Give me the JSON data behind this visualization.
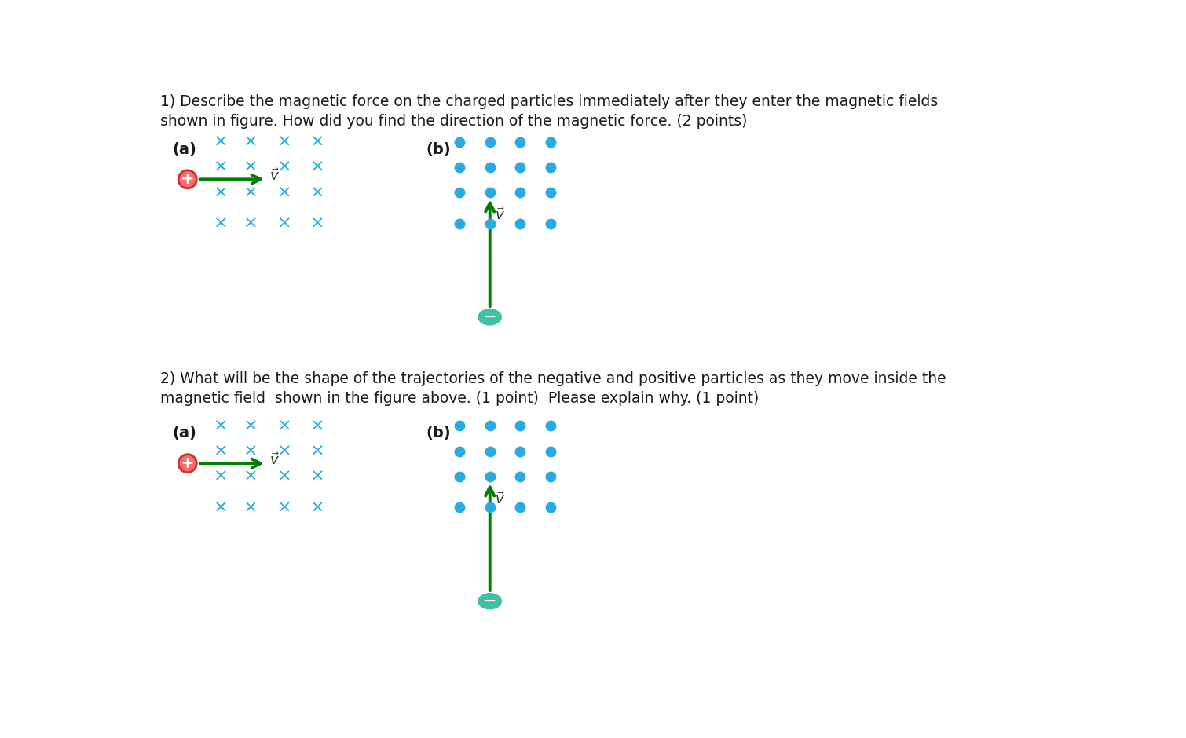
{
  "bg_color": "#ffffff",
  "text_color": "#1a1a1a",
  "cyan_color": "#29ABE2",
  "green_color": "#008000",
  "red_color": "#FF6B6B",
  "teal_color": "#40C0A0",
  "question1_line1": "1) Describe the magnetic force on the charged particles immediately after they enter the magnetic fields",
  "question1_line2": "shown in figure. How did you find the direction of the magnetic force. (2 points)",
  "question2_line1": "2) What will be the shape of the trajectories of the negative and positive particles as they move inside the",
  "question2_line2": "magnetic field  shown in the figure above. (1 point)  Please explain why. (1 point)",
  "label_a": "(a)",
  "label_b": "(b)",
  "fig_width": 15.1,
  "fig_height": 9.4,
  "dpi": 100
}
